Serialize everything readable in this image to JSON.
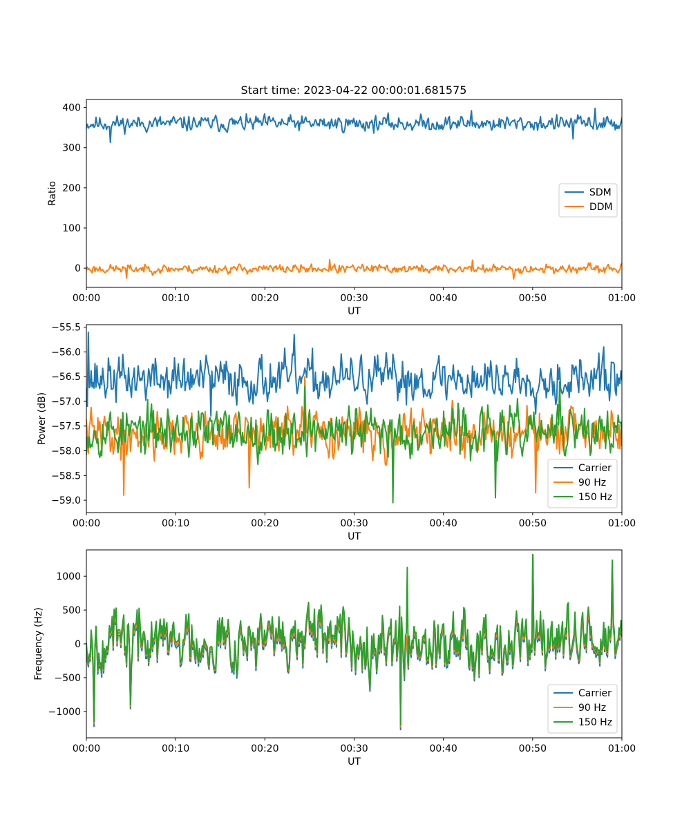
{
  "figure": {
    "title": "Start time: 2023-04-22 00:00:01.681575"
  },
  "chart_data": [
    {
      "type": "line",
      "title": "Start time: 2023-04-22 00:00:01.681575",
      "xlabel": "UT",
      "ylabel": "Ratio",
      "x_ticks": [
        "00:00",
        "00:10",
        "00:20",
        "00:30",
        "00:40",
        "00:50",
        "01:00"
      ],
      "xlim_minutes": [
        0,
        60
      ],
      "ylim": [
        -48,
        420
      ],
      "y_ticks": [
        0,
        100,
        200,
        300,
        400
      ],
      "y_tick_labels": [
        "0",
        "100",
        "200",
        "300",
        "400"
      ],
      "legend": {
        "position": "center-right"
      },
      "series": [
        {
          "name": "SDM",
          "color": "#1f77b4",
          "mean": 360,
          "amplitude": 16,
          "seed": 11,
          "spikes": [
            [
              2.7,
              313
            ],
            [
              43.2,
              392
            ],
            [
              57.0,
              398
            ],
            [
              54.5,
              322
            ]
          ]
        },
        {
          "name": "DDM",
          "color": "#ff7f0e",
          "mean": -2,
          "amplitude": 9,
          "seed": 23,
          "spikes": [
            [
              4.5,
              -25
            ],
            [
              27.3,
              21
            ],
            [
              43.3,
              20
            ],
            [
              47.9,
              -27
            ]
          ]
        }
      ]
    },
    {
      "type": "line",
      "xlabel": "UT",
      "ylabel": "Power (dB)",
      "x_ticks": [
        "00:00",
        "00:10",
        "00:20",
        "00:30",
        "00:40",
        "00:50",
        "01:00"
      ],
      "xlim_minutes": [
        0,
        60
      ],
      "ylim": [
        -59.25,
        -55.45
      ],
      "y_ticks": [
        -55.5,
        -56.0,
        -56.5,
        -57.0,
        -57.5,
        -58.0,
        -58.5,
        -59.0
      ],
      "y_tick_labels": [
        "−55.5",
        "−56.0",
        "−56.5",
        "−57.0",
        "−57.5",
        "−58.0",
        "−58.5",
        "−59.0"
      ],
      "legend": {
        "position": "lower-right"
      },
      "series": [
        {
          "name": "Carrier",
          "color": "#1f77b4",
          "mean": -56.55,
          "amplitude": 0.38,
          "seed": 37,
          "spikes": [
            [
              0.2,
              -55.6
            ],
            [
              23.3,
              -55.65
            ],
            [
              58.0,
              -55.9
            ],
            [
              14.0,
              -57.3
            ]
          ]
        },
        {
          "name": "90 Hz",
          "color": "#ff7f0e",
          "mean": -57.65,
          "amplitude": 0.38,
          "seed": 41,
          "spikes": [
            [
              4.2,
              -58.9
            ],
            [
              18.2,
              -58.75
            ],
            [
              24.5,
              -56.5
            ],
            [
              50.3,
              -58.85
            ]
          ]
        },
        {
          "name": "150 Hz",
          "color": "#2ca02c",
          "mean": -57.6,
          "amplitude": 0.4,
          "seed": 53,
          "spikes": [
            [
              34.4,
              -59.05
            ],
            [
              45.8,
              -58.95
            ],
            [
              24.5,
              -56.7
            ],
            [
              53.0,
              -56.6
            ]
          ]
        }
      ]
    },
    {
      "type": "line",
      "xlabel": "UT",
      "ylabel": "Frequency (Hz)",
      "x_ticks": [
        "00:00",
        "00:10",
        "00:20",
        "00:30",
        "00:40",
        "00:50",
        "01:00"
      ],
      "xlim_minutes": [
        0,
        60
      ],
      "ylim": [
        -1390,
        1390
      ],
      "y_ticks": [
        1000,
        500,
        0,
        -500,
        -1000
      ],
      "y_tick_labels": [
        "1000",
        "500",
        "0",
        "−500",
        "−1000"
      ],
      "legend": {
        "position": "lower-right"
      },
      "series": [
        {
          "name": "Carrier",
          "color": "#1f77b4",
          "mean": 0,
          "amplitude": 340,
          "seed": 67,
          "spikes": [
            [
              0.9,
              -1220
            ],
            [
              35.2,
              -1270
            ],
            [
              50.0,
              1320
            ],
            [
              58.9,
              1230
            ],
            [
              4.9,
              -960
            ]
          ]
        },
        {
          "name": "90 Hz",
          "color": "#ff7f0e",
          "mean": 40,
          "amplitude": 340,
          "seed": 67,
          "spikes": [
            [
              0.9,
              -1180
            ],
            [
              35.2,
              -1230
            ],
            [
              50.0,
              1320
            ],
            [
              58.9,
              1230
            ],
            [
              4.9,
              -930
            ]
          ]
        },
        {
          "name": "150 Hz",
          "color": "#2ca02c",
          "mean": 80,
          "amplitude": 360,
          "seed": 67,
          "spikes": [
            [
              0.9,
              -1150
            ],
            [
              35.2,
              -1200
            ],
            [
              50.0,
              1320
            ],
            [
              58.9,
              1240
            ],
            [
              4.9,
              -900
            ],
            [
              36.0,
              1130
            ]
          ]
        }
      ]
    }
  ]
}
